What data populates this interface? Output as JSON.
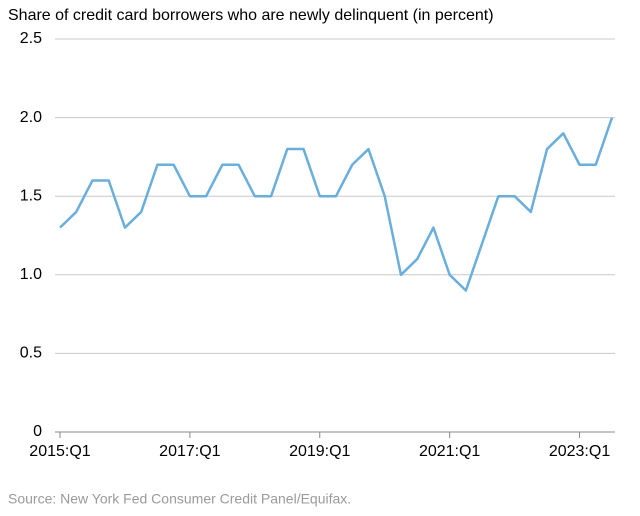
{
  "chart_data": {
    "type": "line",
    "title": "Share of credit card borrowers who are newly delinquent (in percent)",
    "source": "Source: New York Fed Consumer Credit Panel/Equifax.",
    "categories": [
      "2015:Q1",
      null,
      null,
      null,
      null,
      null,
      null,
      null,
      "2017:Q1",
      null,
      null,
      null,
      null,
      null,
      null,
      null,
      "2019:Q1",
      null,
      null,
      null,
      null,
      null,
      null,
      null,
      "2021:Q1",
      null,
      null,
      null,
      null,
      null,
      null,
      null,
      "2023:Q1",
      null,
      null
    ],
    "values": [
      1.3,
      1.4,
      1.6,
      1.6,
      1.3,
      1.4,
      1.7,
      1.7,
      1.5,
      1.5,
      1.7,
      1.7,
      1.5,
      1.5,
      1.8,
      1.8,
      1.5,
      1.5,
      1.7,
      1.8,
      1.5,
      1.0,
      1.1,
      1.3,
      1.0,
      0.9,
      1.2,
      1.5,
      1.5,
      1.4,
      1.8,
      1.9,
      1.7,
      1.7,
      2.0
    ],
    "color": "#6aaedb",
    "ylim": [
      0,
      2.5
    ],
    "yticks": [
      0,
      {
        "value": 0.5,
        "label": "0.5"
      },
      {
        "value": 1,
        "label": "1.0"
      },
      {
        "value": 1.5,
        "label": "1.5"
      },
      {
        "value": 2,
        "label": "2.0"
      },
      {
        "value": 2.5,
        "label": "2.5"
      }
    ],
    "grid": true
  }
}
